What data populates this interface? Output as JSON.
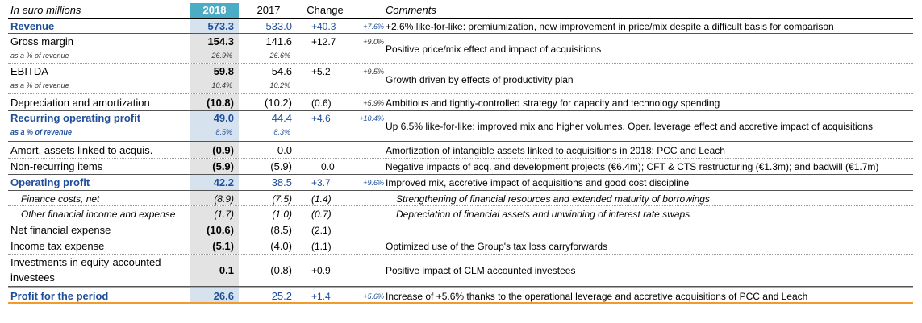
{
  "header": {
    "label": "In euro millions",
    "y2018": "2018",
    "y2017": "2017",
    "change": "Change",
    "comments": "Comments"
  },
  "rows": [
    {
      "label": "Revenue",
      "v2018": "573.3",
      "v2017": "533.0",
      "change": "+40.3",
      "pct": "+7.6%",
      "comment": "+2.6% like-for-like: premiumization, new improvement in price/mix despite a difficult basis for comparison"
    },
    {
      "label": "Gross margin",
      "v2018": "154.3",
      "v2017": "141.6",
      "change": "+12.7",
      "pct": "+9.0%",
      "sub": "as a % of revenue",
      "s2018": "26.9%",
      "s2017": "26.6%",
      "comment": "Positive price/mix effect and impact of acquisitions"
    },
    {
      "label": "EBITDA",
      "v2018": "59.8",
      "v2017": "54.6",
      "change": "+5.2",
      "pct": "+9.5%",
      "sub": "as a % of revenue",
      "s2018": "10.4%",
      "s2017": "10.2%",
      "comment": "Growth driven by effects of productivity plan"
    },
    {
      "label": "Depreciation and amortization",
      "v2018": "(10.8)",
      "v2017": "(10.2)",
      "change": "(0.6)",
      "pct": "+5.9%",
      "comment": "Ambitious and tightly-controlled strategy for capacity and technology spending"
    },
    {
      "label": "Recurring operating profit",
      "v2018": "49.0",
      "v2017": "44.4",
      "change": "+4.6",
      "pct": "+10.4%",
      "sub": "as a % of revenue",
      "s2018": "8.5%",
      "s2017": "8.3%",
      "comment": "Up 6.5% like-for-like: improved mix and higher volumes. Oper. leverage effect and accretive impact of acquisitions"
    },
    {
      "label": "Amort. assets linked to acquis.",
      "v2018": "(0.9)",
      "v2017": "0.0",
      "change": "",
      "pct": "",
      "comment": "Amortization of intangible assets linked to acquisitions in 2018: PCC and Leach"
    },
    {
      "label": "Non-recurring items",
      "v2018": "(5.9)",
      "v2017": "(5.9)",
      "change": "0.0",
      "pct": "",
      "comment": "Negative impacts of acq. and development projects (€6.4m); CFT & CTS restructuring (€1.3m); and badwill (€1.7m)"
    },
    {
      "label": "Operating profit",
      "v2018": "42.2",
      "v2017": "38.5",
      "change": "+3.7",
      "pct": "+9.6%",
      "comment": "Improved mix, accretive impact of acquisitions and good cost discipline"
    },
    {
      "label": "Finance costs, net",
      "v2018": "(8.9)",
      "v2017": "(7.5)",
      "change": "(1.4)",
      "pct": "",
      "comment": "Strengthening of financial resources and extended maturity of borrowings"
    },
    {
      "label": "Other financial income and expense",
      "v2018": "(1.7)",
      "v2017": "(1.0)",
      "change": "(0.7)",
      "pct": "",
      "comment": "Depreciation of financial assets and unwinding of interest rate swaps"
    },
    {
      "label": "Net financial expense",
      "v2018": "(10.6)",
      "v2017": "(8.5)",
      "change": "(2.1)",
      "pct": "",
      "comment": ""
    },
    {
      "label": "Income tax expense",
      "v2018": "(5.1)",
      "v2017": "(4.0)",
      "change": "(1.1)",
      "pct": "",
      "comment": "Optimized use of the Group's tax loss carryforwards"
    },
    {
      "label_line1": "Investments in equity-accounted",
      "label_line2": "investees",
      "v2018": "0.1",
      "v2017": "(0.8)",
      "change": "+0.9",
      "pct": "",
      "comment": "Positive impact of CLM accounted investees"
    },
    {
      "label": "Profit for the period",
      "v2018": "26.6",
      "v2017": "25.2",
      "change": "+1.4",
      "pct": "+5.6%",
      "comment": "Increase of +5.6% thanks to the operational leverage and accretive acquisitions of PCC and Leach"
    }
  ]
}
